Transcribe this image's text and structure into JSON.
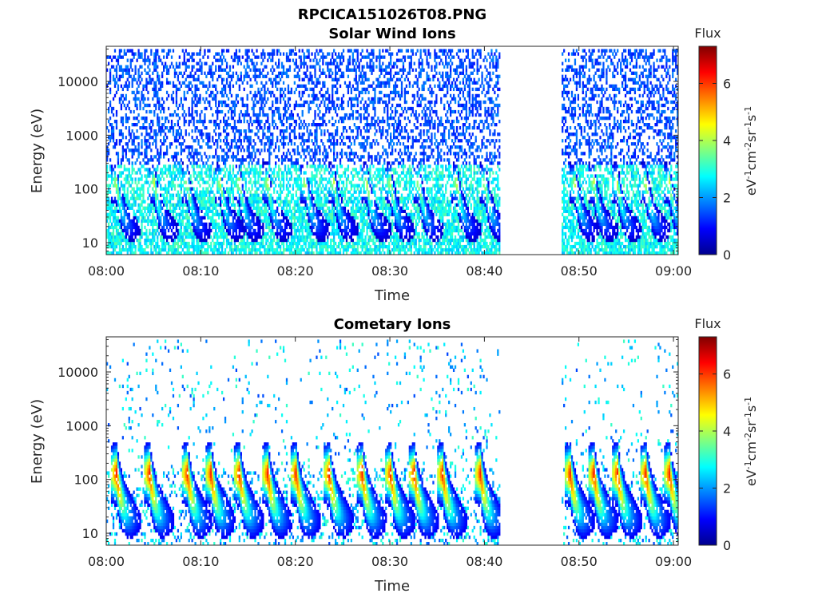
{
  "figure": {
    "filename": "RPCICA151026T08.PNG"
  },
  "chart_data": [
    {
      "type": "heatmap",
      "title": "Solar Wind Ions",
      "xlabel": "Time",
      "ylabel": "Energy (eV)",
      "xticks": [
        "08:00",
        "08:10",
        "08:20",
        "08:30",
        "08:40",
        "08:50",
        "09:00"
      ],
      "yticks": [
        "10",
        "100",
        "1000",
        "10000"
      ],
      "yscale": "log",
      "ylim": [
        6,
        45000
      ],
      "xlim": [
        "08:00",
        "09:00:30"
      ],
      "data_gap": [
        "08:41:30",
        "08:48:00"
      ],
      "colorbar": {
        "label": "Flux",
        "units": "eV-1cm-2sr-1s-1",
        "range": [
          0,
          7.3
        ],
        "ticks": [
          "0",
          "2",
          "4",
          "6"
        ]
      },
      "pulse_times_min": [
        1,
        5,
        8.5,
        12,
        14,
        17,
        21,
        24,
        27.5,
        30,
        33,
        37,
        40,
        49.5,
        51.5,
        54,
        57,
        59.5
      ]
    },
    {
      "type": "heatmap",
      "title": "Cometary Ions",
      "xlabel": "Time",
      "ylabel": "Energy (eV)",
      "xticks": [
        "08:00",
        "08:10",
        "08:20",
        "08:30",
        "08:40",
        "08:50",
        "09:00"
      ],
      "yticks": [
        "10",
        "100",
        "1000",
        "10000"
      ],
      "yscale": "log",
      "ylim": [
        6,
        45000
      ],
      "xlim": [
        "08:00",
        "09:00:30"
      ],
      "data_gap": [
        "08:41:30",
        "08:48:00"
      ],
      "colorbar": {
        "label": "Flux",
        "units": "eV-1cm-2sr-1s-1",
        "range": [
          0,
          7.3
        ],
        "ticks": [
          "0",
          "2",
          "4",
          "6"
        ]
      },
      "pulse_times_min": [
        1,
        4.5,
        8.5,
        11,
        14,
        17,
        20,
        23.5,
        27,
        30,
        32.5,
        35.5,
        39.5,
        49,
        51.5,
        54,
        57,
        59.5
      ]
    }
  ]
}
